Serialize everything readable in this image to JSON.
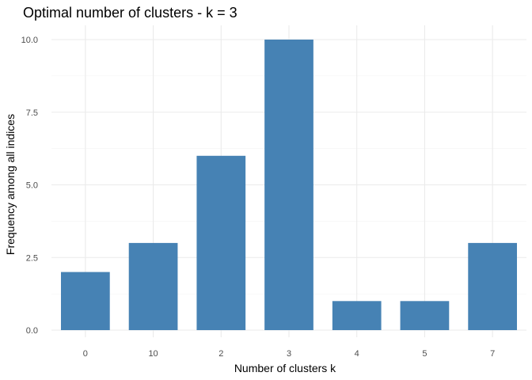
{
  "chart_data": {
    "type": "bar",
    "title": "Optimal number of clusters - k = 3",
    "xlabel": "Number of clusters k",
    "ylabel": "Frequency among all indices",
    "categories": [
      "0",
      "10",
      "2",
      "3",
      "4",
      "5",
      "7"
    ],
    "values": [
      2,
      3,
      6,
      10,
      1,
      1,
      3
    ],
    "ylim": [
      0,
      10.5
    ],
    "yticks": [
      0,
      2.5,
      5,
      7.5,
      10
    ],
    "ytick_labels": [
      "0.0",
      "2.5",
      "5.0",
      "7.5",
      "10.0"
    ],
    "grid": true,
    "bar_color": "#4682B4"
  }
}
